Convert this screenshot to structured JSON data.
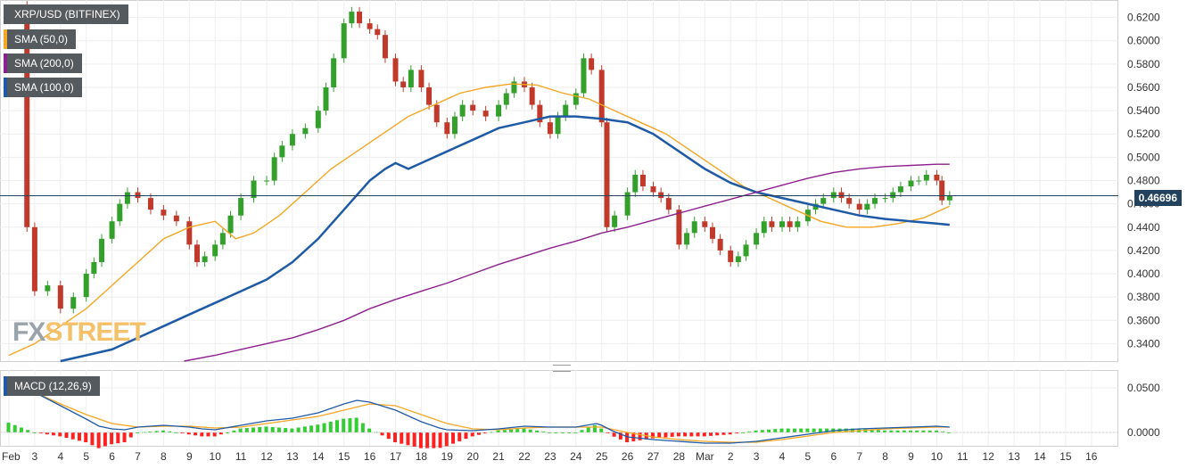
{
  "chart_data": [
    {
      "type": "candlestick",
      "title": "XRP/USD (BITFINEX)",
      "ylim": [
        0.325,
        0.635
      ],
      "y_ticks": [
        "0.6200",
        "0.6000",
        "0.5800",
        "0.5600",
        "0.5400",
        "0.5200",
        "0.5000",
        "0.4800",
        "0.4600",
        "0.4400",
        "0.4200",
        "0.4000",
        "0.3800",
        "0.3600",
        "0.3400"
      ],
      "x_ticks": [
        "Feb",
        "3",
        "4",
        "5",
        "6",
        "7",
        "8",
        "9",
        "10",
        "11",
        "12",
        "13",
        "14",
        "15",
        "16",
        "17",
        "18",
        "19",
        "20",
        "21",
        "22",
        "23",
        "24",
        "25",
        "26",
        "27",
        "28",
        "Mar",
        "2",
        "3",
        "4",
        "5",
        "6",
        "7",
        "8",
        "9",
        "10",
        "11",
        "12",
        "13",
        "14",
        "15",
        "16"
      ],
      "last_price": "0.46696",
      "grid": true,
      "legend_position": "top-left",
      "price_path": [
        [
          0.5,
          0.63
        ],
        [
          0.7,
          0.44
        ],
        [
          1,
          0.385
        ],
        [
          1.5,
          0.39
        ],
        [
          2,
          0.37
        ],
        [
          2.5,
          0.38
        ],
        [
          3,
          0.4
        ],
        [
          3.3,
          0.41
        ],
        [
          3.6,
          0.43
        ],
        [
          4,
          0.445
        ],
        [
          4.3,
          0.46
        ],
        [
          4.6,
          0.47
        ],
        [
          5,
          0.465
        ],
        [
          5.5,
          0.455
        ],
        [
          6,
          0.45
        ],
        [
          6.5,
          0.445
        ],
        [
          7,
          0.425
        ],
        [
          7.3,
          0.41
        ],
        [
          7.6,
          0.415
        ],
        [
          8,
          0.425
        ],
        [
          8.3,
          0.435
        ],
        [
          8.6,
          0.45
        ],
        [
          9,
          0.465
        ],
        [
          9.5,
          0.48
        ],
        [
          10,
          0.48
        ],
        [
          10.3,
          0.5
        ],
        [
          10.6,
          0.51
        ],
        [
          11,
          0.52
        ],
        [
          11.5,
          0.525
        ],
        [
          12,
          0.54
        ],
        [
          12.3,
          0.56
        ],
        [
          12.6,
          0.585
        ],
        [
          13,
          0.615
        ],
        [
          13.3,
          0.625
        ],
        [
          13.6,
          0.615
        ],
        [
          14,
          0.61
        ],
        [
          14.3,
          0.605
        ],
        [
          14.6,
          0.585
        ],
        [
          15,
          0.565
        ],
        [
          15.3,
          0.56
        ],
        [
          15.6,
          0.575
        ],
        [
          16,
          0.56
        ],
        [
          16.3,
          0.545
        ],
        [
          16.6,
          0.53
        ],
        [
          17,
          0.52
        ],
        [
          17.3,
          0.535
        ],
        [
          17.6,
          0.545
        ],
        [
          18,
          0.54
        ],
        [
          18.5,
          0.535
        ],
        [
          19,
          0.545
        ],
        [
          19.3,
          0.555
        ],
        [
          19.6,
          0.565
        ],
        [
          20,
          0.56
        ],
        [
          20.3,
          0.545
        ],
        [
          20.6,
          0.53
        ],
        [
          21,
          0.52
        ],
        [
          21.3,
          0.535
        ],
        [
          21.6,
          0.545
        ],
        [
          22,
          0.555
        ],
        [
          22.3,
          0.585
        ],
        [
          22.6,
          0.575
        ],
        [
          23,
          0.53
        ],
        [
          23.2,
          0.44
        ],
        [
          23.5,
          0.45
        ],
        [
          24,
          0.47
        ],
        [
          24.3,
          0.485
        ],
        [
          24.6,
          0.475
        ],
        [
          25,
          0.47
        ],
        [
          25.3,
          0.465
        ],
        [
          25.6,
          0.455
        ],
        [
          26,
          0.425
        ],
        [
          26.3,
          0.435
        ],
        [
          26.6,
          0.445
        ],
        [
          27,
          0.44
        ],
        [
          27.3,
          0.43
        ],
        [
          27.6,
          0.42
        ],
        [
          28,
          0.41
        ],
        [
          28.3,
          0.415
        ],
        [
          28.6,
          0.425
        ],
        [
          29,
          0.435
        ],
        [
          29.3,
          0.445
        ],
        [
          29.6,
          0.44
        ],
        [
          30,
          0.445
        ],
        [
          30.3,
          0.44
        ],
        [
          30.6,
          0.445
        ],
        [
          31,
          0.455
        ],
        [
          31.3,
          0.46
        ],
        [
          31.6,
          0.465
        ],
        [
          32,
          0.47
        ],
        [
          32.3,
          0.465
        ],
        [
          32.6,
          0.46
        ],
        [
          33,
          0.455
        ],
        [
          33.3,
          0.46
        ],
        [
          33.6,
          0.465
        ],
        [
          34,
          0.465
        ],
        [
          34.3,
          0.47
        ],
        [
          34.6,
          0.475
        ],
        [
          35,
          0.48
        ],
        [
          35.3,
          0.48
        ],
        [
          35.6,
          0.485
        ],
        [
          36,
          0.48
        ],
        [
          36.2,
          0.463
        ],
        [
          36.5,
          0.467
        ]
      ],
      "series": [
        {
          "name": "SMA (50,0)",
          "color": "#f5a623",
          "points": [
            [
              0,
              0.33
            ],
            [
              1,
              0.34
            ],
            [
              2,
              0.355
            ],
            [
              3,
              0.37
            ],
            [
              4,
              0.39
            ],
            [
              5,
              0.41
            ],
            [
              6,
              0.43
            ],
            [
              7,
              0.44
            ],
            [
              8,
              0.445
            ],
            [
              8.8,
              0.43
            ],
            [
              9.5,
              0.435
            ],
            [
              10.5,
              0.45
            ],
            [
              11.5,
              0.47
            ],
            [
              12.5,
              0.49
            ],
            [
              13.5,
              0.505
            ],
            [
              14.5,
              0.52
            ],
            [
              15.5,
              0.535
            ],
            [
              16.5,
              0.545
            ],
            [
              17.5,
              0.555
            ],
            [
              18.5,
              0.56
            ],
            [
              19.5,
              0.563
            ],
            [
              20.5,
              0.562
            ],
            [
              21.5,
              0.555
            ],
            [
              22.5,
              0.55
            ],
            [
              23.5,
              0.54
            ],
            [
              24.5,
              0.53
            ],
            [
              25.5,
              0.52
            ],
            [
              26.5,
              0.505
            ],
            [
              27.5,
              0.49
            ],
            [
              28.5,
              0.475
            ],
            [
              29.5,
              0.465
            ],
            [
              30.5,
              0.455
            ],
            [
              31.5,
              0.445
            ],
            [
              32.5,
              0.44
            ],
            [
              33.5,
              0.44
            ],
            [
              34.5,
              0.443
            ],
            [
              35.5,
              0.448
            ],
            [
              36.5,
              0.458
            ]
          ]
        },
        {
          "name": "SMA (100,0)",
          "color": "#1f5aa6",
          "points": [
            [
              2,
              0.325
            ],
            [
              3,
              0.33
            ],
            [
              4,
              0.335
            ],
            [
              5,
              0.345
            ],
            [
              6,
              0.355
            ],
            [
              7,
              0.365
            ],
            [
              8,
              0.375
            ],
            [
              9,
              0.385
            ],
            [
              10,
              0.395
            ],
            [
              11,
              0.41
            ],
            [
              12,
              0.43
            ],
            [
              13,
              0.455
            ],
            [
              14,
              0.48
            ],
            [
              14.6,
              0.49
            ],
            [
              15,
              0.495
            ],
            [
              15.5,
              0.49
            ],
            [
              16,
              0.495
            ],
            [
              17,
              0.505
            ],
            [
              18,
              0.515
            ],
            [
              19,
              0.525
            ],
            [
              20,
              0.53
            ],
            [
              21,
              0.535
            ],
            [
              22,
              0.535
            ],
            [
              23,
              0.533
            ],
            [
              24,
              0.53
            ],
            [
              25,
              0.52
            ],
            [
              26,
              0.505
            ],
            [
              27,
              0.49
            ],
            [
              28,
              0.478
            ],
            [
              29,
              0.47
            ],
            [
              30,
              0.465
            ],
            [
              31,
              0.46
            ],
            [
              32,
              0.455
            ],
            [
              33,
              0.45
            ],
            [
              34,
              0.447
            ],
            [
              35,
              0.445
            ],
            [
              36,
              0.443
            ],
            [
              36.5,
              0.442
            ]
          ]
        },
        {
          "name": "SMA (200,0)",
          "color": "#8e1f8e",
          "points": [
            [
              6.8,
              0.325
            ],
            [
              8,
              0.33
            ],
            [
              9,
              0.335
            ],
            [
              10,
              0.34
            ],
            [
              11,
              0.345
            ],
            [
              12,
              0.352
            ],
            [
              13,
              0.36
            ],
            [
              14,
              0.37
            ],
            [
              15,
              0.378
            ],
            [
              16,
              0.385
            ],
            [
              17,
              0.392
            ],
            [
              18,
              0.4
            ],
            [
              19,
              0.408
            ],
            [
              20,
              0.415
            ],
            [
              21,
              0.422
            ],
            [
              22,
              0.428
            ],
            [
              23,
              0.435
            ],
            [
              24,
              0.44
            ],
            [
              25,
              0.446
            ],
            [
              26,
              0.452
            ],
            [
              27,
              0.458
            ],
            [
              28,
              0.464
            ],
            [
              29,
              0.47
            ],
            [
              30,
              0.476
            ],
            [
              31,
              0.482
            ],
            [
              32,
              0.487
            ],
            [
              33,
              0.49
            ],
            [
              34,
              0.492
            ],
            [
              35,
              0.493
            ],
            [
              36,
              0.494
            ],
            [
              36.5,
              0.494
            ]
          ]
        }
      ]
    },
    {
      "type": "bar",
      "title": "MACD (12,26,9)",
      "ylim": [
        -0.015,
        0.07
      ],
      "y_ticks": [
        "0.0500",
        "0.0000"
      ],
      "macd_line": [
        [
          0,
          0.06
        ],
        [
          1,
          0.045
        ],
        [
          2,
          0.03
        ],
        [
          3,
          0.015
        ],
        [
          3.5,
          0.007
        ],
        [
          4,
          0.004
        ],
        [
          4.5,
          0.003
        ],
        [
          5,
          0.006
        ],
        [
          6,
          0.008
        ],
        [
          7,
          0.006
        ],
        [
          7.5,
          0.004
        ],
        [
          8,
          0.003
        ],
        [
          9,
          0.008
        ],
        [
          10,
          0.013
        ],
        [
          11,
          0.016
        ],
        [
          12,
          0.022
        ],
        [
          13,
          0.032
        ],
        [
          13.5,
          0.036
        ],
        [
          14,
          0.034
        ],
        [
          15,
          0.025
        ],
        [
          16,
          0.012
        ],
        [
          16.7,
          0.005
        ],
        [
          17,
          0.003
        ],
        [
          18,
          0.002
        ],
        [
          19,
          0.004
        ],
        [
          20,
          0.007
        ],
        [
          21,
          0.006
        ],
        [
          22,
          0.006
        ],
        [
          22.8,
          0.01
        ],
        [
          23,
          0.008
        ],
        [
          23.4,
          0.002
        ],
        [
          24,
          -0.005
        ],
        [
          25,
          -0.008
        ],
        [
          26,
          -0.01
        ],
        [
          27,
          -0.012
        ],
        [
          28,
          -0.012
        ],
        [
          29,
          -0.01
        ],
        [
          30,
          -0.006
        ],
        [
          31,
          -0.002
        ],
        [
          32,
          0.002
        ],
        [
          33,
          0.004
        ],
        [
          34,
          0.005
        ],
        [
          35,
          0.006
        ],
        [
          36,
          0.007
        ],
        [
          36.5,
          0.006
        ]
      ],
      "signal_line": [
        [
          0,
          0.055
        ],
        [
          1,
          0.045
        ],
        [
          2,
          0.032
        ],
        [
          3,
          0.02
        ],
        [
          4,
          0.01
        ],
        [
          5,
          0.006
        ],
        [
          6,
          0.007
        ],
        [
          7,
          0.007
        ],
        [
          8,
          0.005
        ],
        [
          9,
          0.006
        ],
        [
          10,
          0.01
        ],
        [
          11,
          0.014
        ],
        [
          12,
          0.018
        ],
        [
          13,
          0.025
        ],
        [
          14,
          0.032
        ],
        [
          15,
          0.03
        ],
        [
          16,
          0.02
        ],
        [
          17,
          0.01
        ],
        [
          18,
          0.004
        ],
        [
          19,
          0.003
        ],
        [
          20,
          0.005
        ],
        [
          21,
          0.006
        ],
        [
          22,
          0.006
        ],
        [
          23,
          0.006
        ],
        [
          24,
          0.0
        ],
        [
          25,
          -0.005
        ],
        [
          26,
          -0.008
        ],
        [
          27,
          -0.01
        ],
        [
          28,
          -0.011
        ],
        [
          29,
          -0.011
        ],
        [
          30,
          -0.008
        ],
        [
          31,
          -0.004
        ],
        [
          32,
          0.0
        ],
        [
          33,
          0.002
        ],
        [
          34,
          0.004
        ],
        [
          35,
          0.005
        ],
        [
          36,
          0.006
        ],
        [
          36.5,
          0.006
        ]
      ]
    }
  ],
  "macd_colors": {
    "macd": "#1f5aa6",
    "signal": "#f5a623",
    "positive": "#33cc33",
    "negative": "#ff2020"
  },
  "candle_colors": {
    "up": "#33a02c",
    "down": "#c0392b"
  },
  "last_price_color": "#23425e",
  "legends": [
    {
      "label": "XRP/USD (BITFINEX)",
      "swatch": "#555a5f"
    },
    {
      "label": "SMA (50,0)",
      "swatch": "#f5a623"
    },
    {
      "label": "SMA (200,0)",
      "swatch": "#8e1f8e"
    },
    {
      "label": "SMA (100,0)",
      "swatch": "#1f5aa6"
    }
  ],
  "macd_legend": {
    "label": "MACD (12,26,9)",
    "swatch": "#1f5aa6"
  },
  "watermark": {
    "fx": "FX",
    "street": "STREET"
  }
}
